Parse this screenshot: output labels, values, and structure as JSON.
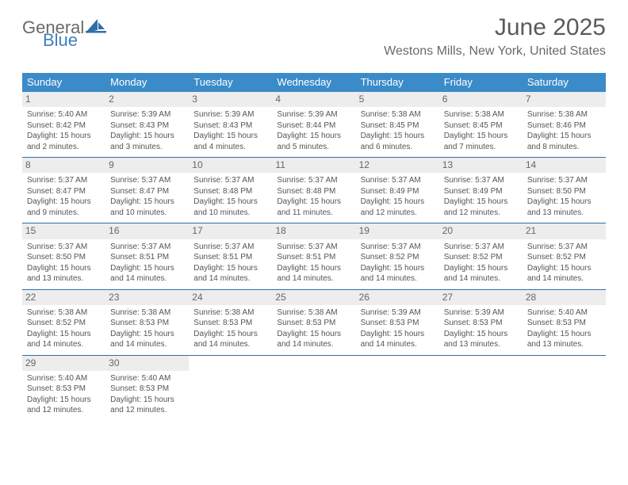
{
  "brand": {
    "line1": "General",
    "line2": "Blue"
  },
  "colors": {
    "header_bg": "#3b8bc8",
    "row_border": "#2f6fa8",
    "daynum_bg": "#ededed",
    "text": "#555555",
    "brand_gray": "#6a6a6a",
    "brand_blue": "#3f7fc0"
  },
  "title": "June 2025",
  "location": "Westons Mills, New York, United States",
  "day_headers": [
    "Sunday",
    "Monday",
    "Tuesday",
    "Wednesday",
    "Thursday",
    "Friday",
    "Saturday"
  ],
  "weeks": [
    [
      {
        "n": "1",
        "sr": "Sunrise: 5:40 AM",
        "ss": "Sunset: 8:42 PM",
        "d1": "Daylight: 15 hours",
        "d2": "and 2 minutes."
      },
      {
        "n": "2",
        "sr": "Sunrise: 5:39 AM",
        "ss": "Sunset: 8:43 PM",
        "d1": "Daylight: 15 hours",
        "d2": "and 3 minutes."
      },
      {
        "n": "3",
        "sr": "Sunrise: 5:39 AM",
        "ss": "Sunset: 8:43 PM",
        "d1": "Daylight: 15 hours",
        "d2": "and 4 minutes."
      },
      {
        "n": "4",
        "sr": "Sunrise: 5:39 AM",
        "ss": "Sunset: 8:44 PM",
        "d1": "Daylight: 15 hours",
        "d2": "and 5 minutes."
      },
      {
        "n": "5",
        "sr": "Sunrise: 5:38 AM",
        "ss": "Sunset: 8:45 PM",
        "d1": "Daylight: 15 hours",
        "d2": "and 6 minutes."
      },
      {
        "n": "6",
        "sr": "Sunrise: 5:38 AM",
        "ss": "Sunset: 8:45 PM",
        "d1": "Daylight: 15 hours",
        "d2": "and 7 minutes."
      },
      {
        "n": "7",
        "sr": "Sunrise: 5:38 AM",
        "ss": "Sunset: 8:46 PM",
        "d1": "Daylight: 15 hours",
        "d2": "and 8 minutes."
      }
    ],
    [
      {
        "n": "8",
        "sr": "Sunrise: 5:37 AM",
        "ss": "Sunset: 8:47 PM",
        "d1": "Daylight: 15 hours",
        "d2": "and 9 minutes."
      },
      {
        "n": "9",
        "sr": "Sunrise: 5:37 AM",
        "ss": "Sunset: 8:47 PM",
        "d1": "Daylight: 15 hours",
        "d2": "and 10 minutes."
      },
      {
        "n": "10",
        "sr": "Sunrise: 5:37 AM",
        "ss": "Sunset: 8:48 PM",
        "d1": "Daylight: 15 hours",
        "d2": "and 10 minutes."
      },
      {
        "n": "11",
        "sr": "Sunrise: 5:37 AM",
        "ss": "Sunset: 8:48 PM",
        "d1": "Daylight: 15 hours",
        "d2": "and 11 minutes."
      },
      {
        "n": "12",
        "sr": "Sunrise: 5:37 AM",
        "ss": "Sunset: 8:49 PM",
        "d1": "Daylight: 15 hours",
        "d2": "and 12 minutes."
      },
      {
        "n": "13",
        "sr": "Sunrise: 5:37 AM",
        "ss": "Sunset: 8:49 PM",
        "d1": "Daylight: 15 hours",
        "d2": "and 12 minutes."
      },
      {
        "n": "14",
        "sr": "Sunrise: 5:37 AM",
        "ss": "Sunset: 8:50 PM",
        "d1": "Daylight: 15 hours",
        "d2": "and 13 minutes."
      }
    ],
    [
      {
        "n": "15",
        "sr": "Sunrise: 5:37 AM",
        "ss": "Sunset: 8:50 PM",
        "d1": "Daylight: 15 hours",
        "d2": "and 13 minutes."
      },
      {
        "n": "16",
        "sr": "Sunrise: 5:37 AM",
        "ss": "Sunset: 8:51 PM",
        "d1": "Daylight: 15 hours",
        "d2": "and 14 minutes."
      },
      {
        "n": "17",
        "sr": "Sunrise: 5:37 AM",
        "ss": "Sunset: 8:51 PM",
        "d1": "Daylight: 15 hours",
        "d2": "and 14 minutes."
      },
      {
        "n": "18",
        "sr": "Sunrise: 5:37 AM",
        "ss": "Sunset: 8:51 PM",
        "d1": "Daylight: 15 hours",
        "d2": "and 14 minutes."
      },
      {
        "n": "19",
        "sr": "Sunrise: 5:37 AM",
        "ss": "Sunset: 8:52 PM",
        "d1": "Daylight: 15 hours",
        "d2": "and 14 minutes."
      },
      {
        "n": "20",
        "sr": "Sunrise: 5:37 AM",
        "ss": "Sunset: 8:52 PM",
        "d1": "Daylight: 15 hours",
        "d2": "and 14 minutes."
      },
      {
        "n": "21",
        "sr": "Sunrise: 5:37 AM",
        "ss": "Sunset: 8:52 PM",
        "d1": "Daylight: 15 hours",
        "d2": "and 14 minutes."
      }
    ],
    [
      {
        "n": "22",
        "sr": "Sunrise: 5:38 AM",
        "ss": "Sunset: 8:52 PM",
        "d1": "Daylight: 15 hours",
        "d2": "and 14 minutes."
      },
      {
        "n": "23",
        "sr": "Sunrise: 5:38 AM",
        "ss": "Sunset: 8:53 PM",
        "d1": "Daylight: 15 hours",
        "d2": "and 14 minutes."
      },
      {
        "n": "24",
        "sr": "Sunrise: 5:38 AM",
        "ss": "Sunset: 8:53 PM",
        "d1": "Daylight: 15 hours",
        "d2": "and 14 minutes."
      },
      {
        "n": "25",
        "sr": "Sunrise: 5:38 AM",
        "ss": "Sunset: 8:53 PM",
        "d1": "Daylight: 15 hours",
        "d2": "and 14 minutes."
      },
      {
        "n": "26",
        "sr": "Sunrise: 5:39 AM",
        "ss": "Sunset: 8:53 PM",
        "d1": "Daylight: 15 hours",
        "d2": "and 14 minutes."
      },
      {
        "n": "27",
        "sr": "Sunrise: 5:39 AM",
        "ss": "Sunset: 8:53 PM",
        "d1": "Daylight: 15 hours",
        "d2": "and 13 minutes."
      },
      {
        "n": "28",
        "sr": "Sunrise: 5:40 AM",
        "ss": "Sunset: 8:53 PM",
        "d1": "Daylight: 15 hours",
        "d2": "and 13 minutes."
      }
    ],
    [
      {
        "n": "29",
        "sr": "Sunrise: 5:40 AM",
        "ss": "Sunset: 8:53 PM",
        "d1": "Daylight: 15 hours",
        "d2": "and 12 minutes."
      },
      {
        "n": "30",
        "sr": "Sunrise: 5:40 AM",
        "ss": "Sunset: 8:53 PM",
        "d1": "Daylight: 15 hours",
        "d2": "and 12 minutes."
      },
      null,
      null,
      null,
      null,
      null
    ]
  ]
}
